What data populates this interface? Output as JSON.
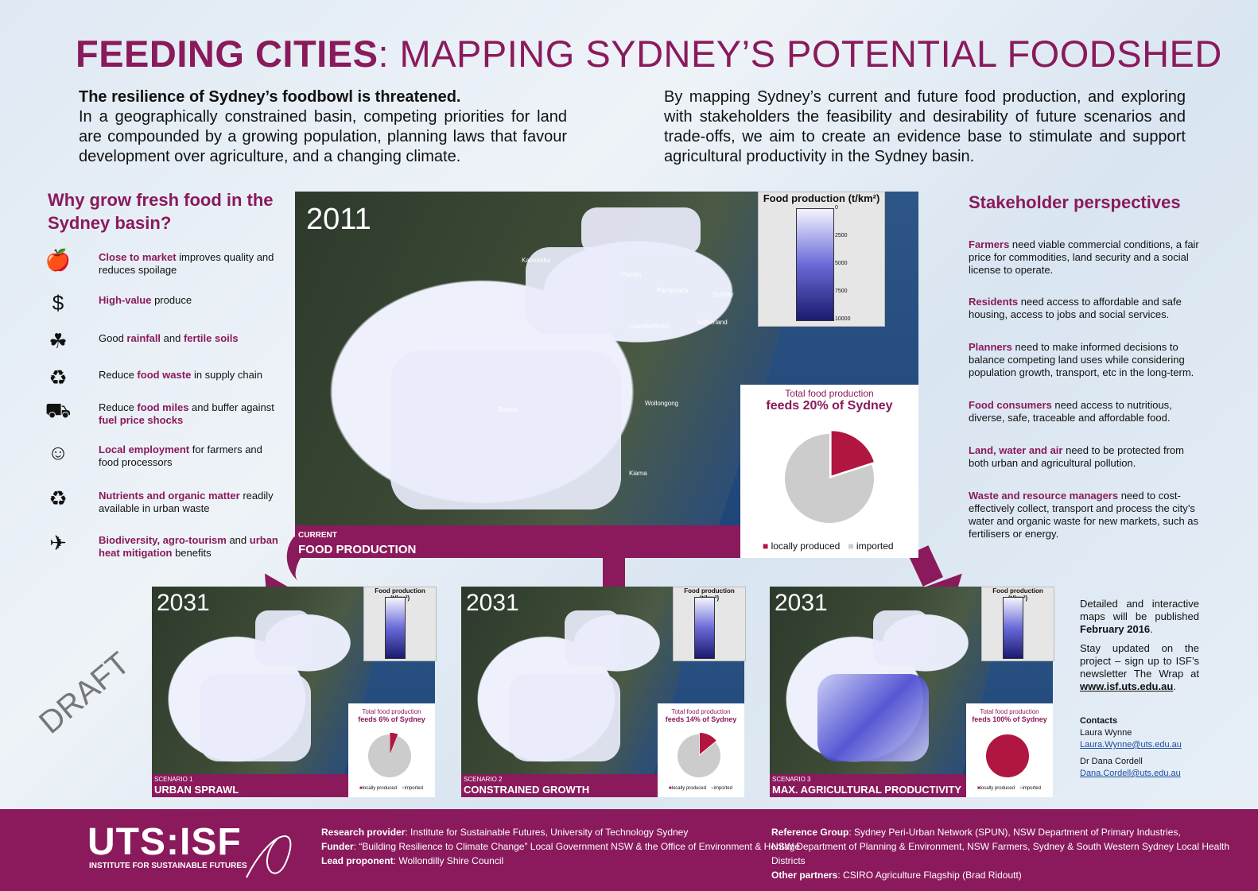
{
  "title": {
    "bold": "FEEDING CITIES",
    "rest": ": MAPPING SYDNEY’S POTENTIAL FOODSHED"
  },
  "intro_left": {
    "lead": "The resilience of Sydney’s foodbowl is threatened.",
    "body": "In a geographically constrained basin, competing priorities for land are compounded by a growing population, planning laws that favour development over agriculture, and a changing climate."
  },
  "intro_right": "By mapping Sydney’s current and future food production, and exploring with stakeholders the feasibility and desirability of future scenarios and trade-offs, we aim to create an evidence base to stimulate and support agricultural productivity in the Sydney basin.",
  "why": {
    "title": "Why grow fresh food in the Sydney basin?",
    "items": [
      {
        "icon": "apple-icon",
        "html": [
          "Close to market",
          " improves quality and reduces spoilage"
        ]
      },
      {
        "icon": "money-icon",
        "html": [
          "High-value",
          " produce"
        ]
      },
      {
        "icon": "seedling-icon",
        "html": [
          "Good ",
          "rainfall",
          " and ",
          "fertile soils"
        ]
      },
      {
        "icon": "bin-icon",
        "html": [
          "Reduce ",
          "food waste",
          " in supply chain"
        ]
      },
      {
        "icon": "truck-icon",
        "html": [
          "Reduce ",
          "food miles",
          " and buffer against ",
          "fuel price shocks"
        ]
      },
      {
        "icon": "people-icon",
        "html": [
          "Local employment",
          " for farmers and food processors"
        ]
      },
      {
        "icon": "recycle-leaf-icon",
        "html": [
          "Nutrients and organic matter",
          " readily available in urban waste"
        ]
      },
      {
        "icon": "bird-icon",
        "html": [
          "Biodiversity, agro-tourism",
          " and ",
          "urban heat mitigation",
          " benefits"
        ]
      }
    ]
  },
  "main_map": {
    "year": "2011",
    "legend_title": "Food production (t/km²)",
    "ticks": [
      "0",
      "2500",
      "5000",
      "7500",
      "10000"
    ],
    "places": [
      "Katoomba",
      "Penrith",
      "Parramatta",
      "Sydney",
      "Campbelltown",
      "Sutherland",
      "Wollongong",
      "Bowral",
      "Kiama"
    ],
    "pie_title": "Total food production",
    "pie_headline": "feeds 20% of Sydney",
    "legend_local": "locally produced",
    "legend_imported": "imported",
    "band_small": "CURRENT",
    "band_big": "FOOD PRODUCTION",
    "local_share": 0.2
  },
  "scenarios": [
    {
      "year": "2031",
      "legend_title": "Food production (t/km²)",
      "pie_title": "Total food production",
      "pie_headline": "feeds 6% of Sydney",
      "band_small": "SCENARIO 1",
      "band_big": "URBAN SPRAWL",
      "legend_local": "locally produced",
      "legend_imported": "imported",
      "local_share": 0.06
    },
    {
      "year": "2031",
      "legend_title": "Food production (t/km²)",
      "pie_title": "Total food production",
      "pie_headline": "feeds 14% of Sydney",
      "band_small": "SCENARIO 2",
      "band_big": "CONSTRAINED GROWTH",
      "legend_local": "locally produced",
      "legend_imported": "imported",
      "local_share": 0.14
    },
    {
      "year": "2031",
      "legend_title": "Food production (t/km²)",
      "pie_title": "Total food production",
      "pie_headline": "feeds 100% of Sydney",
      "band_small": "SCENARIO 3",
      "band_big": "MAX. AGRICULTURAL PRODUCTIVITY",
      "legend_local": "locally produced",
      "legend_imported": "imported",
      "local_share": 1.0
    }
  ],
  "stakeholders": {
    "title": "Stakeholder perspectives",
    "items": [
      {
        "k": "Farmers",
        "t": " need viable commercial conditions, a fair price for commodities, land security and a social license to operate."
      },
      {
        "k": "Residents",
        "t": " need access to affordable and safe housing, access to jobs and social services."
      },
      {
        "k": "Planners",
        "t": " need to make informed decisions to balance competing land uses while considering population growth, transport, etc in the long-term."
      },
      {
        "k": "Food consumers",
        "t": " need access to nutritious, diverse, safe, traceable and affordable food."
      },
      {
        "k": "Land, water and air",
        "t": " need to be protected from both urban and agricultural pollution."
      },
      {
        "k": "Waste and resource managers",
        "t": " need to cost-effectively collect, transport and process the city’s water and organic waste for new markets, such as fertilisers or energy."
      }
    ]
  },
  "side": {
    "p1a": "Detailed and interactive maps will be published ",
    "p1b": "February 2016",
    "p1c": ".",
    "p2a": "Stay updated on the project – sign up to ISF’s newsletter The Wrap at ",
    "p2b": "www.isf.uts.edu.au",
    "p2c": ".",
    "contacts": "Contacts",
    "c1_name": "Laura Wynne",
    "c1_email": "Laura.Wynne@uts.edu.au",
    "c2_name": "Dr Dana Cordell",
    "c2_email": "Dana.Cordell@uts.edu.au"
  },
  "draft": "DRAFT",
  "footer": {
    "logo": "UTS:ISF",
    "logo_sub": "INSTITUTE FOR SUSTAINABLE FUTURES",
    "rp_k": "Research provider",
    "rp_v": ": Institute for Sustainable Futures, University of Technology Sydney",
    "f_k": "Funder",
    "f_v": ": “Building Resilience to Climate Change” Local Government NSW & the Office of Environment & Heritage",
    "lp_k": "Lead proponent",
    "lp_v": ": Wollondilly Shire Council",
    "rg_k": "Reference Group",
    "rg_v": ": Sydney Peri-Urban Network (SPUN), NSW Department of Primary Industries,",
    "rg_v2": "NSW Department of Planning & Environment, NSW Farmers, Sydney & South Western Sydney Local Health Districts",
    "op_k": "Other partners",
    "op_v": ": CSIRO Agriculture Flagship (Brad Ridoutt)"
  },
  "colors": {
    "accent": "#8a1a5c",
    "pie_local": "#b0163f",
    "pie_imported": "#cccccc"
  }
}
